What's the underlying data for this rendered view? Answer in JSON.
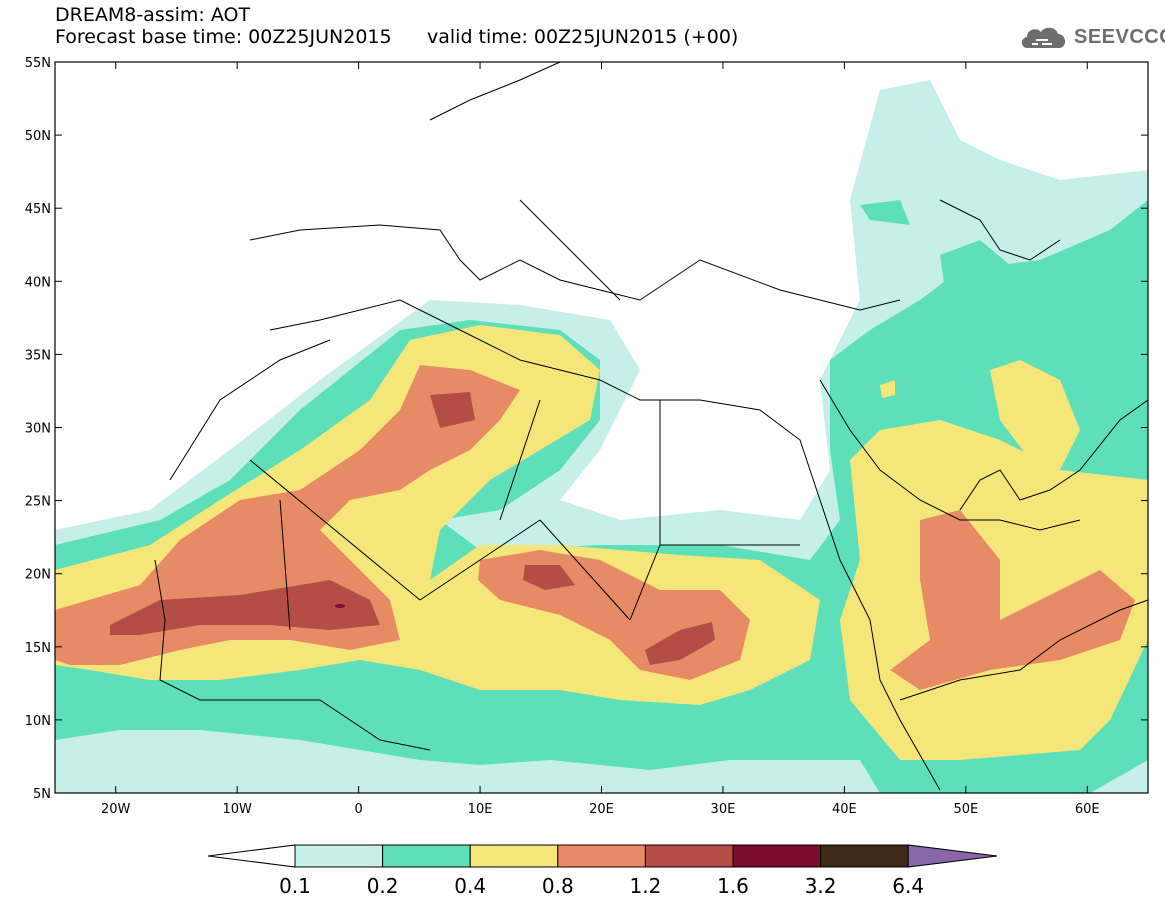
{
  "header": {
    "model_line": "DREAM8-assim: AOT",
    "forecast_line": "Forecast base time: 00Z25JUN2015",
    "valid_line": "valid time: 00Z25JUN2015 (+00)"
  },
  "logo": {
    "text": "SEEVCCC",
    "icon": "cloud-logo-icon"
  },
  "map": {
    "lon_range": [
      -25,
      65
    ],
    "lat_range": [
      5,
      55
    ],
    "lat_ticks": [
      {
        "v": 55,
        "label": "55N"
      },
      {
        "v": 50,
        "label": "50N"
      },
      {
        "v": 45,
        "label": "45N"
      },
      {
        "v": 40,
        "label": "40N"
      },
      {
        "v": 35,
        "label": "35N"
      },
      {
        "v": 30,
        "label": "30N"
      },
      {
        "v": 25,
        "label": "25N"
      },
      {
        "v": 20,
        "label": "20N"
      },
      {
        "v": 15,
        "label": "15N"
      },
      {
        "v": 10,
        "label": "10N"
      },
      {
        "v": 5,
        "label": "5N"
      }
    ],
    "lon_ticks": [
      {
        "v": -20,
        "label": "20W"
      },
      {
        "v": -10,
        "label": "10W"
      },
      {
        "v": 0,
        "label": "0"
      },
      {
        "v": 10,
        "label": "10E"
      },
      {
        "v": 20,
        "label": "20E"
      },
      {
        "v": 30,
        "label": "30E"
      },
      {
        "v": 40,
        "label": "40E"
      },
      {
        "v": 50,
        "label": "50E"
      },
      {
        "v": 60,
        "label": "60E"
      }
    ]
  },
  "colorbar": {
    "levels": [
      "0.1",
      "0.2",
      "0.4",
      "0.8",
      "1.2",
      "1.6",
      "3.2",
      "6.4"
    ],
    "colors": [
      "#ffffff",
      "#c6efe9",
      "#5ddfb9",
      "#f5e679",
      "#e78b66",
      "#b34d45",
      "#7a0d2e",
      "#3e2a17",
      "#8a67a8"
    ]
  }
}
